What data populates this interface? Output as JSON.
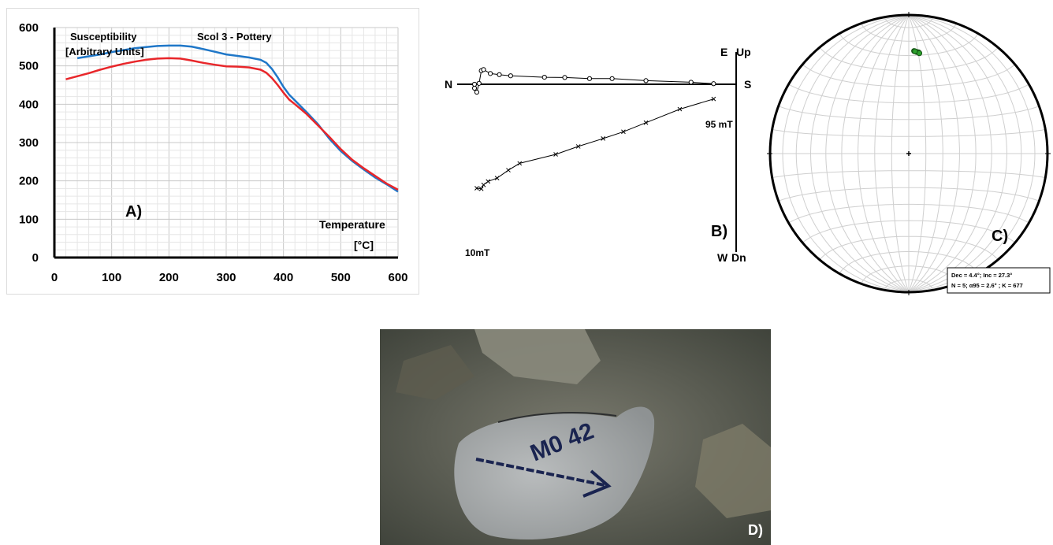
{
  "chart_data": [
    {
      "type": "line",
      "panel_label": "A)",
      "title": "Scol 3 - Pottery",
      "ylabel": "Susceptibility",
      "ylabel_unit": "[Arbitrary Units]",
      "xlabel": "Temperature",
      "xlabel_unit": "[°C]",
      "xlim": [
        0,
        600
      ],
      "ylim": [
        0,
        600
      ],
      "xticks": [
        0,
        100,
        200,
        300,
        400,
        500,
        600
      ],
      "yticks": [
        0,
        100,
        200,
        300,
        400,
        500,
        600
      ],
      "grid": true,
      "series": [
        {
          "color": "#1f77c8",
          "x": [
            40,
            60,
            80,
            100,
            120,
            140,
            160,
            180,
            200,
            220,
            240,
            260,
            280,
            300,
            320,
            340,
            360,
            370,
            380,
            390,
            400,
            410,
            420,
            440,
            460,
            480,
            500,
            520,
            540,
            560,
            580,
            600
          ],
          "y": [
            520,
            525,
            530,
            536,
            541,
            546,
            549,
            552,
            553,
            553,
            550,
            544,
            537,
            530,
            526,
            522,
            516,
            508,
            492,
            470,
            445,
            425,
            410,
            380,
            348,
            310,
            278,
            252,
            230,
            209,
            191,
            172
          ]
        },
        {
          "color": "#e8262a",
          "x": [
            20,
            40,
            60,
            80,
            100,
            120,
            140,
            160,
            180,
            200,
            220,
            240,
            260,
            280,
            300,
            320,
            340,
            360,
            370,
            380,
            390,
            400,
            410,
            420,
            440,
            460,
            480,
            500,
            520,
            540,
            560,
            580,
            600
          ],
          "y": [
            465,
            473,
            481,
            490,
            498,
            505,
            511,
            516,
            519,
            520,
            519,
            514,
            508,
            503,
            499,
            498,
            496,
            490,
            482,
            468,
            450,
            430,
            412,
            400,
            375,
            345,
            315,
            283,
            255,
            233,
            213,
            193,
            177
          ]
        }
      ]
    },
    {
      "type": "scatter",
      "panel_label": "B)",
      "axis_labels": {
        "top_left": "E",
        "top_right": "Up",
        "bottom_left": "W",
        "bottom_right": "Dn",
        "left": "N",
        "right": "S"
      },
      "annotations": [
        "95 mT",
        "10mT"
      ],
      "ylim": [
        -10,
        2
      ],
      "xlim": [
        -12,
        2
      ],
      "series": [
        {
          "marker": "o",
          "x": [
            -11.6,
            -11.6,
            -11.5,
            -11.4,
            -11.3,
            -11.2,
            -10.9,
            -10.5,
            -10.0,
            -8.5,
            -7.6,
            -6.5,
            -5.5,
            -4.0,
            -2.0,
            -1.0
          ],
          "y": [
            0,
            -0.35,
            -0.7,
            0.08,
            1.2,
            1.3,
            0.95,
            0.85,
            0.75,
            0.62,
            0.6,
            0.5,
            0.5,
            0.32,
            0.18,
            0.05
          ]
        },
        {
          "marker": "x",
          "x": [
            -11.5,
            -11.3,
            -11.2,
            -11.0,
            -10.6,
            -10.1,
            -9.6,
            -8.0,
            -7.0,
            -5.9,
            -5.0,
            -4.0,
            -2.5,
            -1.0
          ],
          "y": [
            -9.2,
            -9.25,
            -8.9,
            -8.6,
            -8.3,
            -7.6,
            -7.0,
            -6.2,
            -5.5,
            -4.8,
            -4.2,
            -3.4,
            -2.2,
            -1.3
          ]
        }
      ]
    },
    {
      "type": "scatter",
      "panel_label": "C)",
      "projection": "equal-area stereonet",
      "series": [
        {
          "color": "#2ca02c",
          "declination": [
            4.4,
            3.0,
            5.5,
            6.0,
            3.5
          ],
          "inclination": [
            27.3,
            26.8,
            27.5,
            28.0,
            27.0
          ]
        }
      ],
      "annotation_lines": [
        "Dec = 4.4°; Inc = 27.3°",
        "N = 5;  α95 = 2.6° ; K = 677"
      ]
    }
  ],
  "photo": {
    "panel_label": "D)",
    "marking_text": "M0 42"
  }
}
